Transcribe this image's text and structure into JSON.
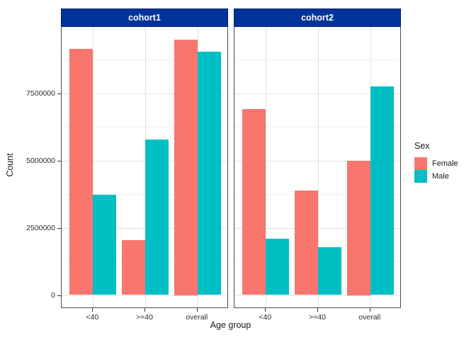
{
  "chart_data": {
    "type": "bar",
    "title": "",
    "xlabel": "Age group",
    "ylabel": "Count",
    "categories": [
      "<40",
      ">=40",
      "overall"
    ],
    "facets": [
      "cohort1",
      "cohort2"
    ],
    "panels": [
      {
        "facet": "cohort1",
        "series": [
          {
            "name": "Female",
            "values": [
              9150000,
              2050000,
              9500000
            ]
          },
          {
            "name": "Male",
            "values": [
              3720000,
              5770000,
              9050000
            ]
          }
        ]
      },
      {
        "facet": "cohort2",
        "series": [
          {
            "name": "Female",
            "values": [
              6900000,
              3870000,
              5000000
            ]
          },
          {
            "name": "Male",
            "values": [
              2080000,
              1780000,
              7760000
            ]
          }
        ]
      }
    ],
    "y_ticks": [
      0,
      2500000,
      5000000,
      7500000
    ],
    "y_tick_labels": [
      "0",
      "2500000",
      "5000000",
      "7500000"
    ],
    "y_minor_ticks": [
      1250000,
      3750000,
      6250000,
      8750000
    ],
    "ylim": [
      0,
      9950000
    ],
    "grid": true,
    "legend_title": "Sex",
    "legend_entries": [
      "Female",
      "Male"
    ],
    "legend_position": "right",
    "colors": {
      "strip_bg": "#003399",
      "strip_text": "#ffffff",
      "female": "#F8766D",
      "male": "#00BFC4",
      "panel_border": "#4d4d4d",
      "grid_major": "#e2e2e2",
      "grid_minor": "#f0f0f0"
    }
  }
}
